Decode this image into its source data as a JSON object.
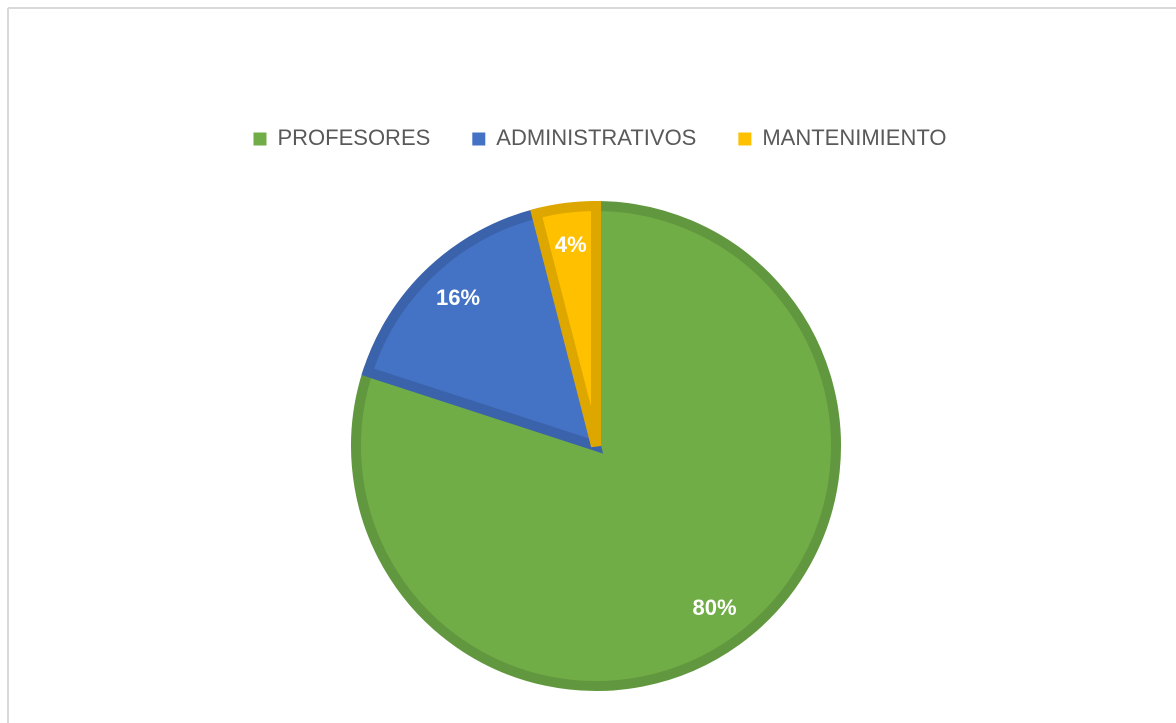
{
  "chart_data": {
    "type": "pie",
    "categories": [
      "PROFESORES",
      "ADMINISTRATIVOS",
      "MANTENIMIENTO"
    ],
    "values": [
      80,
      16,
      4
    ],
    "value_labels": [
      "80%",
      "16%",
      "4%"
    ],
    "colors": [
      "#70ad47",
      "#4472c4",
      "#ffc000"
    ],
    "legend": "top"
  }
}
